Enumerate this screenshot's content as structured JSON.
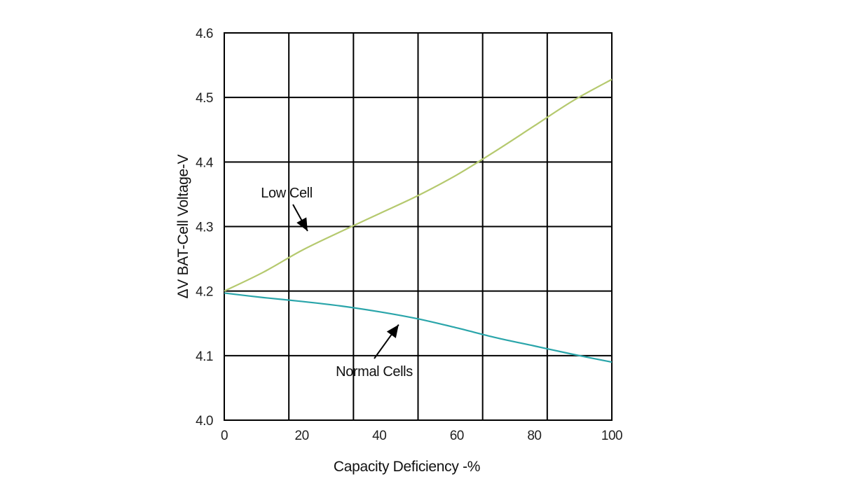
{
  "chart_data": {
    "type": "line",
    "xlabel": "Capacity Deficiency -%",
    "ylabel": "ΔV BAT-Cell Voltage-V",
    "xlim": [
      0,
      100
    ],
    "ylim": [
      4.0,
      4.6
    ],
    "grid": true,
    "x_ticks": [
      0,
      20,
      40,
      60,
      80,
      100
    ],
    "x_tick_labels": [
      "0",
      "20",
      "40",
      "60",
      "80",
      "100"
    ],
    "x_grid_lines": 6,
    "y_ticks": [
      4.0,
      4.1,
      4.2,
      4.3,
      4.4,
      4.5,
      4.6
    ],
    "y_tick_labels": [
      "4.0",
      "4.1",
      "4.2",
      "4.3",
      "4.4",
      "4.5",
      "4.6"
    ],
    "series": [
      {
        "key": "low",
        "color": "#b5c96e",
        "x": [
          0,
          10,
          20,
          30,
          40,
          50,
          60,
          70,
          80,
          90,
          100
        ],
        "y": [
          4.2,
          4.229,
          4.263,
          4.292,
          4.32,
          4.348,
          4.38,
          4.417,
          4.456,
          4.495,
          4.528
        ]
      },
      {
        "key": "normal",
        "color": "#2aa5aa",
        "x": [
          0,
          10,
          20,
          30,
          40,
          50,
          60,
          70,
          80,
          90,
          100
        ],
        "y": [
          4.197,
          4.19,
          4.184,
          4.177,
          4.168,
          4.157,
          4.143,
          4.128,
          4.115,
          4.102,
          4.09
        ]
      }
    ],
    "annotations": [
      {
        "text": "Low Cell",
        "arrow_to": {
          "x": 21.5,
          "y": 4.293
        }
      },
      {
        "text": "Normal Cells",
        "arrow_to": {
          "x": 45,
          "y": 4.148
        }
      }
    ]
  }
}
